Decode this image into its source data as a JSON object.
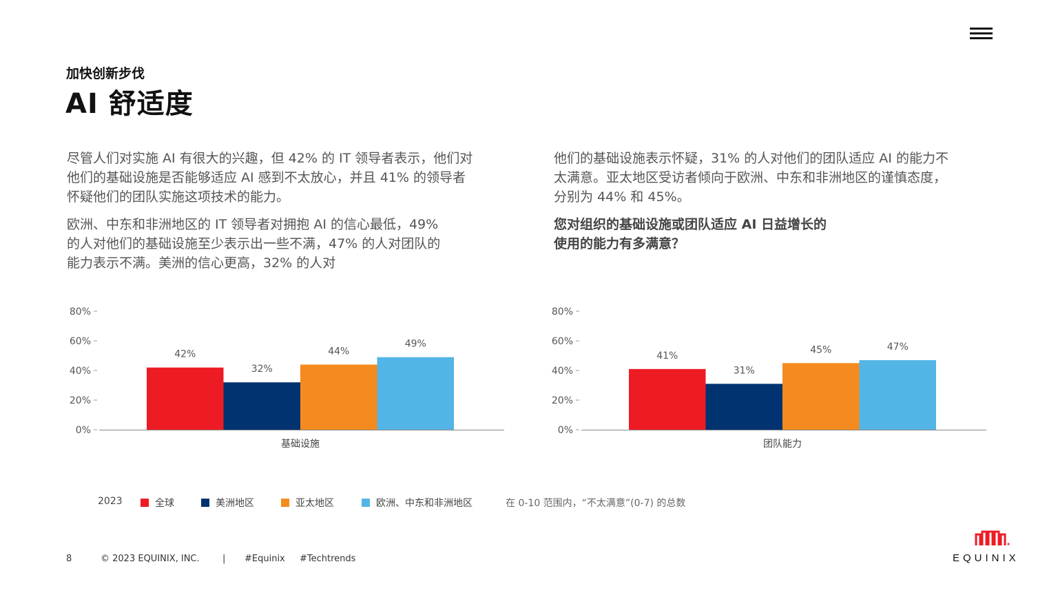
{
  "header": {
    "kicker": "加快创新步伐",
    "title": "AI 舒适度"
  },
  "body": {
    "p1": "尽管人们对实施 AI 有很大的兴趣，但 42% 的 IT 领导者表示，他们对他们的基础设施是否能够适应 AI 感到不太放心，并且 41% 的领导者怀疑他们的团队实施这项技术的能力。",
    "p2": "欧洲、中东和非洲地区的 IT 领导者对拥抱 AI 的信心最低，49% 的人对他们的基础设施至少表示出一些不满，47% 的人对团队的能力表示不满。美洲的信心更高，32% 的人对",
    "p3": "他们的基础设施表示怀疑，31% 的人对他们的团队适应 AI 的能力不太满意。亚太地区受访者倾向于欧洲、中东和非洲地区的谨慎态度，分别为 44% 和 45%。",
    "question": "您对组织的基础设施或团队适应 AI 日益增长的使用的能力有多满意？"
  },
  "chart_data": [
    {
      "type": "bar",
      "categories": [
        "基础设施"
      ],
      "series": [
        {
          "name": "全球",
          "values": [
            42
          ],
          "label": "42%",
          "color": "#ed1c24"
        },
        {
          "name": "美洲地区",
          "values": [
            32
          ],
          "label": "32%",
          "color": "#003370"
        },
        {
          "name": "亚太地区",
          "values": [
            44
          ],
          "label": "44%",
          "color": "#f58b1f"
        },
        {
          "name": "欧洲、中东和非洲地区",
          "values": [
            49
          ],
          "label": "49%",
          "color": "#53b5e6"
        }
      ],
      "yticks": [
        "0%",
        "20%",
        "40%",
        "60%",
        "80%"
      ],
      "ylim": [
        0,
        80
      ],
      "grid": false
    },
    {
      "type": "bar",
      "categories": [
        "团队能力"
      ],
      "series": [
        {
          "name": "全球",
          "values": [
            41
          ],
          "label": "41%",
          "color": "#ed1c24"
        },
        {
          "name": "美洲地区",
          "values": [
            31
          ],
          "label": "31%",
          "color": "#003370"
        },
        {
          "name": "亚太地区",
          "values": [
            45
          ],
          "label": "45%",
          "color": "#f58b1f"
        },
        {
          "name": "欧洲、中东和非洲地区",
          "values": [
            47
          ],
          "label": "47%",
          "color": "#53b5e6"
        }
      ],
      "yticks": [
        "0%",
        "20%",
        "40%",
        "60%",
        "80%"
      ],
      "ylim": [
        0,
        80
      ],
      "grid": false
    }
  ],
  "legend": {
    "year": "2023",
    "items": [
      {
        "label": "全球",
        "color": "#ed1c24"
      },
      {
        "label": "美洲地区",
        "color": "#003370"
      },
      {
        "label": "亚太地区",
        "color": "#f58b1f"
      },
      {
        "label": "欧洲、中东和非洲地区",
        "color": "#53b5e6"
      }
    ]
  },
  "note": "在 0-10 范围内，“不太满意”(0-7) 的总数",
  "footer": {
    "page": "8",
    "copyright": "© 2023 EQUINIX, INC.",
    "separator": "|",
    "tag1": "#Equinix",
    "tag2": "#Techtrends"
  },
  "logo": {
    "text": "EQUINIX",
    "color": "#ed1c24"
  }
}
